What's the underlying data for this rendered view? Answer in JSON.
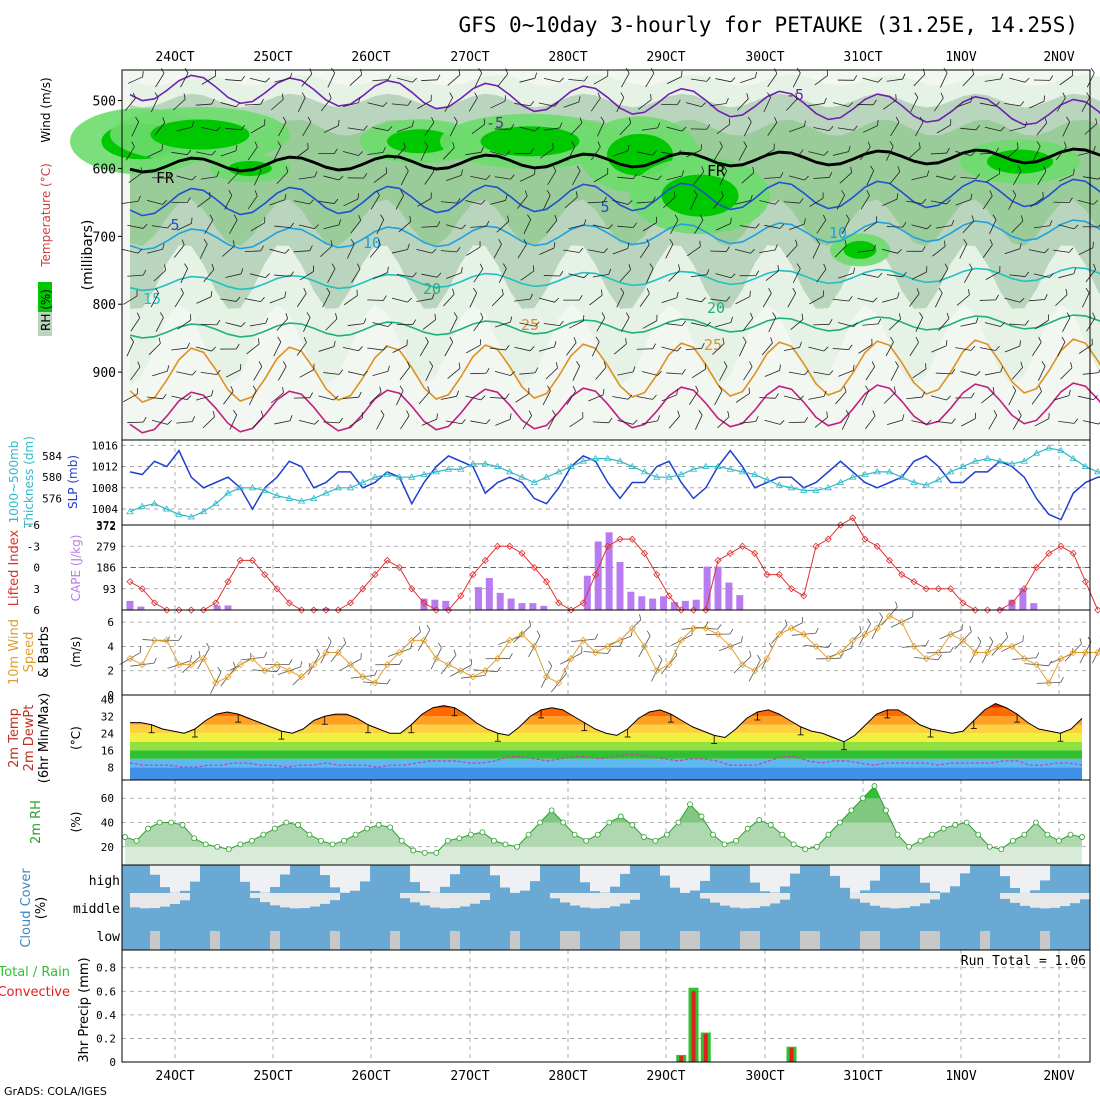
{
  "title": "GFS 0~10day 3-hourly for PETAUKE (31.25E, 14.25S)",
  "credit": "GrADS: COLA/IGES",
  "colors": {
    "rh_dark": "#00c800",
    "rh_mid": "#6ddc6d",
    "rh_light": "#b9d5bd",
    "rh_pale": "#e6f2e6",
    "slp": "#1f3fd0",
    "thk": "#30b8c8",
    "li": "#e03030",
    "cape": "#b87cf0",
    "wind": "#e0a030",
    "tmp_hot": "#d02000",
    "tmp_mid": "#ff9000",
    "dew": "#3070d0",
    "rh2m": "#2ea02e",
    "cloud": "#6aa9d4",
    "cloud_clear": "#eef0f4",
    "rain": "#30c030",
    "conv": "#e02020"
  },
  "chart_data": [
    {
      "panel": "upper_air",
      "type": "heatmap",
      "x_labels": [
        "24OCT",
        "25OCT",
        "26OCT",
        "27OCT",
        "28OCT",
        "29OCT",
        "30OCT",
        "31OCT",
        "1NOV",
        "2NOV"
      ],
      "ylabel": "(millibars)",
      "y_ticks": [
        500,
        600,
        700,
        800,
        900
      ],
      "legend_labels": [
        "RH (%)",
        "Temperature (°C)",
        "Wind (m/s)"
      ],
      "contour_labels": [
        "-5",
        "-5",
        "FR",
        "FR",
        "5",
        "5",
        "10",
        "10",
        "15",
        "20",
        "20",
        "25",
        "25"
      ],
      "temperature_contours_C": [
        -5,
        0,
        5,
        10,
        15,
        20,
        25,
        30
      ]
    },
    {
      "panel": "slp_thickness",
      "type": "line",
      "ylabel_left": "1000~500mb Thickness (dm)",
      "ylabel_right": "SLP (mb)",
      "left_ticks": [
        576,
        580,
        584
      ],
      "right_ticks": [
        1004,
        1008,
        1012,
        1016
      ],
      "series": [
        {
          "name": "SLP (mb)",
          "values": [
            1011,
            1010.5,
            1013,
            1012,
            1015,
            1010,
            1008,
            1009,
            1010,
            1008,
            1004,
            1008,
            1010,
            1013,
            1012,
            1008,
            1009,
            1011,
            1011,
            1008,
            1009,
            1011,
            1010,
            1005,
            1009,
            1012,
            1014,
            1013,
            1012,
            1007,
            1009,
            1010,
            1009,
            1006,
            1005,
            1008,
            1012,
            1014,
            1013,
            1009,
            1006,
            1009,
            1009,
            1012,
            1013,
            1009,
            1006,
            1008,
            1012,
            1015,
            1012,
            1008,
            1009,
            1010,
            1010,
            1008,
            1009,
            1011,
            1013,
            1011,
            1009,
            1008,
            1009,
            1010,
            1013,
            1014,
            1012,
            1009,
            1009,
            1011,
            1011,
            1013,
            1012,
            1010,
            1006,
            1003,
            1002,
            1007,
            1009,
            1010,
            1010
          ]
        },
        {
          "name": "Thickness (dm)",
          "values": [
            573.5,
            574.5,
            575,
            574,
            573,
            572.5,
            573.5,
            575,
            577,
            578,
            578,
            577.5,
            576.5,
            576,
            575.5,
            576,
            577,
            578,
            578,
            579,
            580,
            580.5,
            580,
            580,
            580.5,
            581,
            581.5,
            581.5,
            582.5,
            582.5,
            582,
            581,
            580,
            579,
            580,
            581,
            582,
            583,
            583.5,
            583.5,
            583,
            582,
            581,
            580,
            580,
            580.5,
            581.5,
            582,
            582,
            581.5,
            581,
            580.5,
            579.5,
            578.5,
            578,
            577.5,
            577.5,
            578,
            579,
            580,
            580.5,
            581,
            581,
            580,
            579,
            578.5,
            579.5,
            581,
            582,
            583,
            583.5,
            583,
            582.5,
            583,
            584.5,
            585.5,
            585,
            583.5,
            582,
            581,
            580.5
          ]
        }
      ]
    },
    {
      "panel": "cape_li",
      "type": "bar",
      "ylabel_left": "Lifted Index",
      "ylabel_right": "CAPE (J/kg)",
      "li_ticks": [
        -6,
        -3,
        0,
        3,
        6
      ],
      "cape_ticks": [
        93,
        186,
        279,
        372
      ],
      "series": [
        {
          "name": "CAPE (J/kg)",
          "values": [
            40,
            15,
            0,
            0,
            0,
            0,
            0,
            0,
            20,
            20,
            0,
            0,
            0,
            0,
            0,
            0,
            0,
            5,
            8,
            0,
            0,
            0,
            0,
            0,
            0,
            0,
            0,
            50,
            45,
            40,
            0,
            0,
            100,
            140,
            75,
            50,
            30,
            30,
            18,
            0,
            0,
            0,
            150,
            300,
            340,
            210,
            80,
            60,
            50,
            60,
            35,
            40,
            45,
            190,
            190,
            120,
            65,
            0,
            0,
            0,
            0,
            0,
            0,
            0,
            0,
            0,
            0,
            0,
            0,
            0,
            0,
            0,
            0,
            0,
            0,
            0,
            0,
            0,
            0,
            0,
            10,
            45,
            95,
            30,
            0,
            0,
            0,
            0,
            0,
            0,
            15
          ]
        },
        {
          "name": "Lifted Index",
          "values": [
            2,
            3,
            5,
            6,
            6,
            6,
            6,
            5,
            2,
            -1,
            -1,
            1,
            3,
            5,
            6,
            6,
            6,
            6,
            5,
            3,
            1,
            -1,
            0,
            3,
            5,
            6,
            6,
            4,
            1,
            -1,
            -3,
            -3,
            -2,
            0,
            2,
            5,
            6,
            5,
            1,
            -3,
            -4,
            -4,
            -2,
            1,
            4,
            6,
            6,
            6,
            -1,
            -2,
            -3,
            -2,
            1,
            1,
            3,
            4,
            -3,
            -4,
            -6,
            -7,
            -4,
            -3,
            -1,
            1,
            2,
            3,
            3,
            3,
            5,
            6,
            6,
            6,
            5,
            3,
            0,
            -2,
            -3,
            -2,
            2,
            6
          ]
        }
      ]
    },
    {
      "panel": "wind10m",
      "type": "line",
      "ylabel": "10m Wind Speed & Barbs (m/s)",
      "y_ticks": [
        0,
        2,
        4,
        6
      ],
      "series": [
        {
          "name": "Wind speed",
          "values": [
            3,
            2.5,
            4.5,
            4.5,
            2.5,
            2.5,
            3,
            1,
            1.5,
            2.5,
            3,
            2,
            2.5,
            2,
            1.5,
            2.5,
            3.5,
            3.5,
            2.5,
            1.5,
            1,
            2.5,
            3.5,
            4.5,
            4.5,
            3,
            2.5,
            2,
            1.5,
            2,
            3,
            4.5,
            5,
            4,
            1.5,
            1,
            3,
            4.5,
            3.5,
            4,
            4.5,
            5.5,
            4,
            2,
            2.5,
            4.5,
            5.5,
            5.5,
            5,
            4,
            2.5,
            2,
            3,
            5,
            5.5,
            5,
            4,
            3,
            3.5,
            4.5,
            5,
            5.5,
            6.5,
            6,
            4,
            3,
            3.5,
            5,
            4.5,
            3.5,
            3.5,
            4,
            4,
            3,
            2.5,
            1,
            3,
            3.5,
            3.5,
            3.5,
            4.5
          ]
        }
      ]
    },
    {
      "panel": "temp2m",
      "type": "area",
      "ylabel": "2m Temp 2m DewPt (6hr Min/Max) (°C)",
      "y_ticks": [
        8,
        16,
        24,
        32,
        40
      ],
      "series": [
        {
          "name": "2m Temp",
          "values": [
            29,
            29,
            28,
            26,
            25,
            24,
            26,
            30,
            33,
            34,
            33,
            31,
            29,
            27,
            25,
            24,
            26,
            30,
            32,
            33,
            33,
            31,
            28,
            26,
            24,
            24,
            28,
            33,
            36,
            37,
            36,
            33,
            29,
            26,
            24,
            23,
            27,
            32,
            35,
            36,
            35,
            32,
            29,
            26,
            24,
            23,
            26,
            31,
            34,
            35,
            33,
            30,
            27,
            25,
            23,
            22,
            26,
            31,
            34,
            35,
            33,
            30,
            27,
            25,
            24,
            22,
            20,
            23,
            28,
            33,
            35,
            35,
            32,
            28,
            26,
            25,
            24,
            25,
            30,
            35,
            38,
            36,
            33,
            29,
            26,
            25,
            24,
            26,
            31
          ]
        },
        {
          "name": "2m DewPt",
          "values": [
            10,
            9,
            9,
            9,
            8,
            8,
            9,
            9,
            10,
            10,
            9,
            9,
            8,
            9,
            9,
            10,
            9,
            9,
            9,
            8,
            9,
            9,
            10,
            11,
            11,
            11,
            10,
            10,
            11,
            13,
            13,
            12,
            11,
            12,
            13,
            13,
            12,
            13,
            14,
            14,
            13,
            12,
            11,
            12,
            12,
            11,
            9,
            9,
            9,
            11,
            13,
            13,
            11,
            10,
            11,
            11,
            10,
            9,
            10,
            10,
            10,
            10,
            9,
            10,
            10,
            10,
            10,
            11,
            11,
            9,
            9,
            10,
            10,
            9
          ]
        }
      ]
    },
    {
      "panel": "rh2m",
      "type": "area",
      "ylabel": "2m RH (%)",
      "y_ticks": [
        20,
        40,
        60
      ],
      "series": [
        {
          "name": "2m RH",
          "values": [
            28,
            25,
            35,
            40,
            40,
            38,
            27,
            22,
            20,
            18,
            22,
            25,
            30,
            35,
            40,
            38,
            30,
            25,
            22,
            25,
            30,
            35,
            38,
            36,
            25,
            17,
            15,
            15,
            25,
            27,
            30,
            32,
            25,
            22,
            20,
            30,
            40,
            50,
            40,
            30,
            25,
            30,
            40,
            45,
            38,
            28,
            25,
            30,
            40,
            55,
            45,
            30,
            22,
            25,
            35,
            42,
            38,
            30,
            22,
            18,
            20,
            30,
            40,
            50,
            60,
            70,
            50,
            30,
            20,
            25,
            30,
            35,
            38,
            40,
            30,
            20,
            18,
            25,
            30,
            40,
            30,
            25,
            30,
            28
          ]
        }
      ]
    },
    {
      "panel": "cloud_cover",
      "type": "area",
      "ylabel": "Cloud Cover (%)",
      "row_labels": [
        "high",
        "middle",
        "low"
      ]
    },
    {
      "panel": "precip",
      "type": "bar",
      "ylabel": "3hr Precip (mm)",
      "legend_labels": [
        "Total / Rain",
        "Convective"
      ],
      "y_ticks": [
        0,
        0.2,
        0.4,
        0.6,
        0.8
      ],
      "run_total": "Run Total = 1.06",
      "series": [
        {
          "name": "Total",
          "values": [
            0,
            0,
            0,
            0,
            0,
            0,
            0,
            0,
            0,
            0,
            0,
            0,
            0,
            0,
            0,
            0,
            0,
            0,
            0,
            0,
            0,
            0,
            0,
            0,
            0,
            0,
            0,
            0,
            0,
            0,
            0,
            0,
            0,
            0,
            0,
            0,
            0,
            0,
            0,
            0,
            0,
            0,
            0,
            0,
            0,
            0.06,
            0.63,
            0.25,
            0,
            0,
            0,
            0,
            0,
            0,
            0.13,
            0,
            0,
            0,
            0,
            0,
            0,
            0,
            0,
            0,
            0,
            0,
            0,
            0,
            0,
            0,
            0,
            0,
            0,
            0,
            0,
            0,
            0,
            0,
            0,
            0,
            0
          ]
        },
        {
          "name": "Convective",
          "values": [
            0,
            0,
            0,
            0,
            0,
            0,
            0,
            0,
            0,
            0,
            0,
            0,
            0,
            0,
            0,
            0,
            0,
            0,
            0,
            0,
            0,
            0,
            0,
            0,
            0,
            0,
            0,
            0,
            0,
            0,
            0,
            0,
            0,
            0,
            0,
            0,
            0,
            0,
            0,
            0,
            0,
            0,
            0,
            0,
            0,
            0.05,
            0.6,
            0.24,
            0,
            0,
            0,
            0,
            0,
            0,
            0.12,
            0,
            0,
            0,
            0,
            0,
            0,
            0,
            0,
            0,
            0,
            0,
            0,
            0,
            0,
            0,
            0,
            0,
            0,
            0,
            0,
            0,
            0,
            0,
            0,
            0,
            0
          ]
        }
      ]
    }
  ]
}
